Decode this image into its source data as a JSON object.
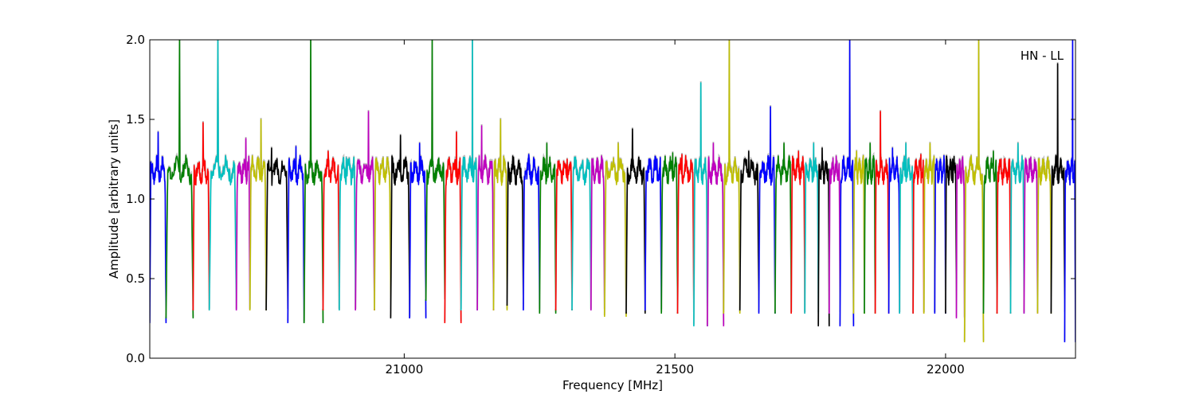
{
  "chart_data": {
    "type": "line",
    "title": "",
    "annotation": "HN - LL",
    "xlabel": "Frequency [MHz]",
    "ylabel": "Amplitude [arbitrary units]",
    "xlim": [
      20530,
      22240
    ],
    "ylim": [
      0.0,
      2.0
    ],
    "xticks": [
      21000,
      21500,
      22000
    ],
    "yticks": [
      0.0,
      0.5,
      1.0,
      1.5,
      2.0
    ],
    "xtick_labels": [
      "21000",
      "21500",
      "22000"
    ],
    "ytick_labels": [
      "0.0",
      "0.5",
      "1.0",
      "1.5",
      "2.0"
    ],
    "grid": false,
    "legend": "none",
    "colors": [
      "#0000ff",
      "#008000",
      "#ff0000",
      "#00bfbf",
      "#bf00bf",
      "#bfbf00",
      "#000000"
    ],
    "shadow_color": "#c0c0c0",
    "baseline": 1.18,
    "spectral_windows": [
      {
        "start": 20530,
        "end": 20560,
        "color": "#0000ff",
        "dip": 0.22,
        "spike": 1.42
      },
      {
        "start": 20560,
        "end": 20610,
        "color": "#008000",
        "dip": 0.25,
        "spike": 2.0
      },
      {
        "start": 20610,
        "end": 20640,
        "color": "#ff0000",
        "dip": 0.3,
        "spike": 1.48
      },
      {
        "start": 20640,
        "end": 20690,
        "color": "#00bfbf",
        "dip": 0.3,
        "spike": 2.0
      },
      {
        "start": 20690,
        "end": 20715,
        "color": "#bf00bf",
        "dip": 0.3,
        "spike": 1.38
      },
      {
        "start": 20715,
        "end": 20745,
        "color": "#bfbf00",
        "dip": 0.3,
        "spike": 1.5
      },
      {
        "start": 20745,
        "end": 20785,
        "color": "#000000",
        "dip": 0.3,
        "spike": 1.32
      },
      {
        "start": 20785,
        "end": 20815,
        "color": "#0000ff",
        "dip": 0.22,
        "spike": 1.33
      },
      {
        "start": 20815,
        "end": 20850,
        "color": "#008000",
        "dip": 0.22,
        "spike": 2.0
      },
      {
        "start": 20850,
        "end": 20880,
        "color": "#ff0000",
        "dip": 0.3,
        "spike": 1.3
      },
      {
        "start": 20880,
        "end": 20910,
        "color": "#00bfbf",
        "dip": 0.3,
        "spike": 1.26
      },
      {
        "start": 20910,
        "end": 20945,
        "color": "#bf00bf",
        "dip": 0.3,
        "spike": 1.55
      },
      {
        "start": 20945,
        "end": 20975,
        "color": "#bfbf00",
        "dip": 0.3,
        "spike": 1.26
      },
      {
        "start": 20975,
        "end": 21010,
        "color": "#000000",
        "dip": 0.25,
        "spike": 1.4
      },
      {
        "start": 21010,
        "end": 21040,
        "color": "#0000ff",
        "dip": 0.25,
        "spike": 1.35
      },
      {
        "start": 21040,
        "end": 21075,
        "color": "#008000",
        "dip": 0.36,
        "spike": 2.0
      },
      {
        "start": 21075,
        "end": 21105,
        "color": "#ff0000",
        "dip": 0.22,
        "spike": 1.42
      },
      {
        "start": 21105,
        "end": 21135,
        "color": "#00bfbf",
        "dip": 0.3,
        "spike": 2.0
      },
      {
        "start": 21135,
        "end": 21165,
        "color": "#bf00bf",
        "dip": 0.3,
        "spike": 1.46
      },
      {
        "start": 21165,
        "end": 21190,
        "color": "#bfbf00",
        "dip": 0.3,
        "spike": 1.5
      },
      {
        "start": 21190,
        "end": 21220,
        "color": "#000000",
        "dip": 0.33,
        "spike": 1.27
      },
      {
        "start": 21220,
        "end": 21250,
        "color": "#0000ff",
        "dip": 0.3,
        "spike": 1.28
      },
      {
        "start": 21250,
        "end": 21280,
        "color": "#008000",
        "dip": 0.28,
        "spike": 1.35
      },
      {
        "start": 21280,
        "end": 21310,
        "color": "#ff0000",
        "dip": 0.3,
        "spike": 1.25
      },
      {
        "start": 21310,
        "end": 21345,
        "color": "#00bfbf",
        "dip": 0.3,
        "spike": 1.22
      },
      {
        "start": 21345,
        "end": 21370,
        "color": "#bf00bf",
        "dip": 0.3,
        "spike": 1.24
      },
      {
        "start": 21370,
        "end": 21410,
        "color": "#bfbf00",
        "dip": 0.26,
        "spike": 1.35
      },
      {
        "start": 21410,
        "end": 21445,
        "color": "#000000",
        "dip": 0.28,
        "spike": 1.44
      },
      {
        "start": 21445,
        "end": 21475,
        "color": "#0000ff",
        "dip": 0.3,
        "spike": 1.25
      },
      {
        "start": 21475,
        "end": 21505,
        "color": "#008000",
        "dip": 0.28,
        "spike": 1.29
      },
      {
        "start": 21505,
        "end": 21535,
        "color": "#ff0000",
        "dip": 0.28,
        "spike": 1.28
      },
      {
        "start": 21535,
        "end": 21560,
        "color": "#00bfbf",
        "dip": 0.2,
        "spike": 1.73
      },
      {
        "start": 21560,
        "end": 21590,
        "color": "#bf00bf",
        "dip": 0.2,
        "spike": 1.35
      },
      {
        "start": 21590,
        "end": 21620,
        "color": "#bfbf00",
        "dip": 0.28,
        "spike": 2.0
      },
      {
        "start": 21620,
        "end": 21655,
        "color": "#000000",
        "dip": 0.3,
        "spike": 1.3
      },
      {
        "start": 21655,
        "end": 21685,
        "color": "#0000ff",
        "dip": 0.28,
        "spike": 1.58
      },
      {
        "start": 21685,
        "end": 21715,
        "color": "#008000",
        "dip": 0.28,
        "spike": 1.35
      },
      {
        "start": 21715,
        "end": 21740,
        "color": "#ff0000",
        "dip": 0.28,
        "spike": 1.3
      },
      {
        "start": 21740,
        "end": 21765,
        "color": "#00bfbf",
        "dip": 0.28,
        "spike": 1.35
      },
      {
        "start": 21765,
        "end": 21785,
        "color": "#000000",
        "dip": 0.2,
        "spike": 1.32
      },
      {
        "start": 21785,
        "end": 21805,
        "color": "#bf00bf",
        "dip": 0.28,
        "spike": 1.2
      },
      {
        "start": 21805,
        "end": 21830,
        "color": "#0000ff",
        "dip": 0.2,
        "spike": 2.0
      },
      {
        "start": 21830,
        "end": 21850,
        "color": "#bfbf00",
        "dip": 0.28,
        "spike": 1.3
      },
      {
        "start": 21850,
        "end": 21870,
        "color": "#008000",
        "dip": 0.28,
        "spike": 1.35
      },
      {
        "start": 21870,
        "end": 21895,
        "color": "#ff0000",
        "dip": 0.28,
        "spike": 1.55
      },
      {
        "start": 21895,
        "end": 21915,
        "color": "#0000ff",
        "dip": 0.28,
        "spike": 1.32
      },
      {
        "start": 21915,
        "end": 21940,
        "color": "#00bfbf",
        "dip": 0.28,
        "spike": 1.35
      },
      {
        "start": 21940,
        "end": 21960,
        "color": "#ff0000",
        "dip": 0.28,
        "spike": 1.28
      },
      {
        "start": 21960,
        "end": 21980,
        "color": "#bfbf00",
        "dip": 0.28,
        "spike": 1.35
      },
      {
        "start": 21980,
        "end": 22000,
        "color": "#0000ff",
        "dip": 0.28,
        "spike": 1.25
      },
      {
        "start": 22000,
        "end": 22020,
        "color": "#000000",
        "dip": 0.28,
        "spike": 1.25
      },
      {
        "start": 22020,
        "end": 22035,
        "color": "#bf00bf",
        "dip": 0.25,
        "spike": 1.2
      },
      {
        "start": 22035,
        "end": 22070,
        "color": "#bfbf00",
        "dip": 0.1,
        "spike": 2.0
      },
      {
        "start": 22070,
        "end": 22095,
        "color": "#008000",
        "dip": 0.28,
        "spike": 1.3
      },
      {
        "start": 22095,
        "end": 22120,
        "color": "#ff0000",
        "dip": 0.28,
        "spike": 1.25
      },
      {
        "start": 22120,
        "end": 22145,
        "color": "#00bfbf",
        "dip": 0.28,
        "spike": 1.35
      },
      {
        "start": 22145,
        "end": 22170,
        "color": "#bf00bf",
        "dip": 0.28,
        "spike": 1.25
      },
      {
        "start": 22170,
        "end": 22195,
        "color": "#bfbf00",
        "dip": 0.28,
        "spike": 1.25
      },
      {
        "start": 22195,
        "end": 22220,
        "color": "#000000",
        "dip": 0.28,
        "spike": 1.85
      },
      {
        "start": 22220,
        "end": 22240,
        "color": "#0000ff",
        "dip": 0.1,
        "spike": 2.0
      }
    ]
  }
}
